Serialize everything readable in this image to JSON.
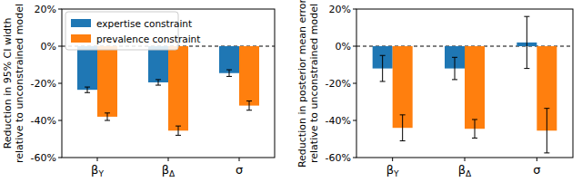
{
  "chart_data": [
    {
      "type": "bar",
      "y_label": "Reduction in 95% CI width\nrelative to unconstrained model",
      "categories": [
        "βY",
        "βΔ",
        "σ"
      ],
      "series": [
        {
          "name": "expertise constraint",
          "color": "#1f77b4",
          "values": [
            -23.5,
            -19.5,
            -14.5
          ],
          "errors": [
            1.5,
            1.5,
            1.8
          ]
        },
        {
          "name": "prevalence constraint",
          "color": "#ff7f0e",
          "values": [
            -38,
            -45.5,
            -32
          ],
          "errors": [
            2,
            2.5,
            2.5
          ]
        }
      ],
      "ylim": [
        -60,
        20
      ],
      "yticks": [
        {
          "value": -60,
          "label": "-60%"
        },
        {
          "value": -40,
          "label": "-40%"
        },
        {
          "value": -20,
          "label": "-20%"
        },
        {
          "value": 0,
          "label": "0%"
        },
        {
          "value": 20,
          "label": "20%"
        }
      ],
      "legend": "upper left"
    },
    {
      "type": "bar",
      "y_label": "Reduction in posterior mean error\nrelative to unconstrained model",
      "categories": [
        "βY",
        "βΔ",
        "σ"
      ],
      "series": [
        {
          "name": "expertise constraint",
          "color": "#1f77b4",
          "values": [
            -12,
            -12,
            2
          ],
          "errors": [
            7,
            6,
            14
          ]
        },
        {
          "name": "prevalence constraint",
          "color": "#ff7f0e",
          "values": [
            -44,
            -44.5,
            -45.5
          ],
          "errors": [
            7,
            5,
            12
          ]
        }
      ],
      "ylim": [
        -60,
        20
      ],
      "yticks": [
        {
          "value": -60,
          "label": "-60%"
        },
        {
          "value": -40,
          "label": "-40%"
        },
        {
          "value": -20,
          "label": "-20%"
        },
        {
          "value": 0,
          "label": "0%"
        },
        {
          "value": 20,
          "label": "20%"
        }
      ]
    }
  ]
}
